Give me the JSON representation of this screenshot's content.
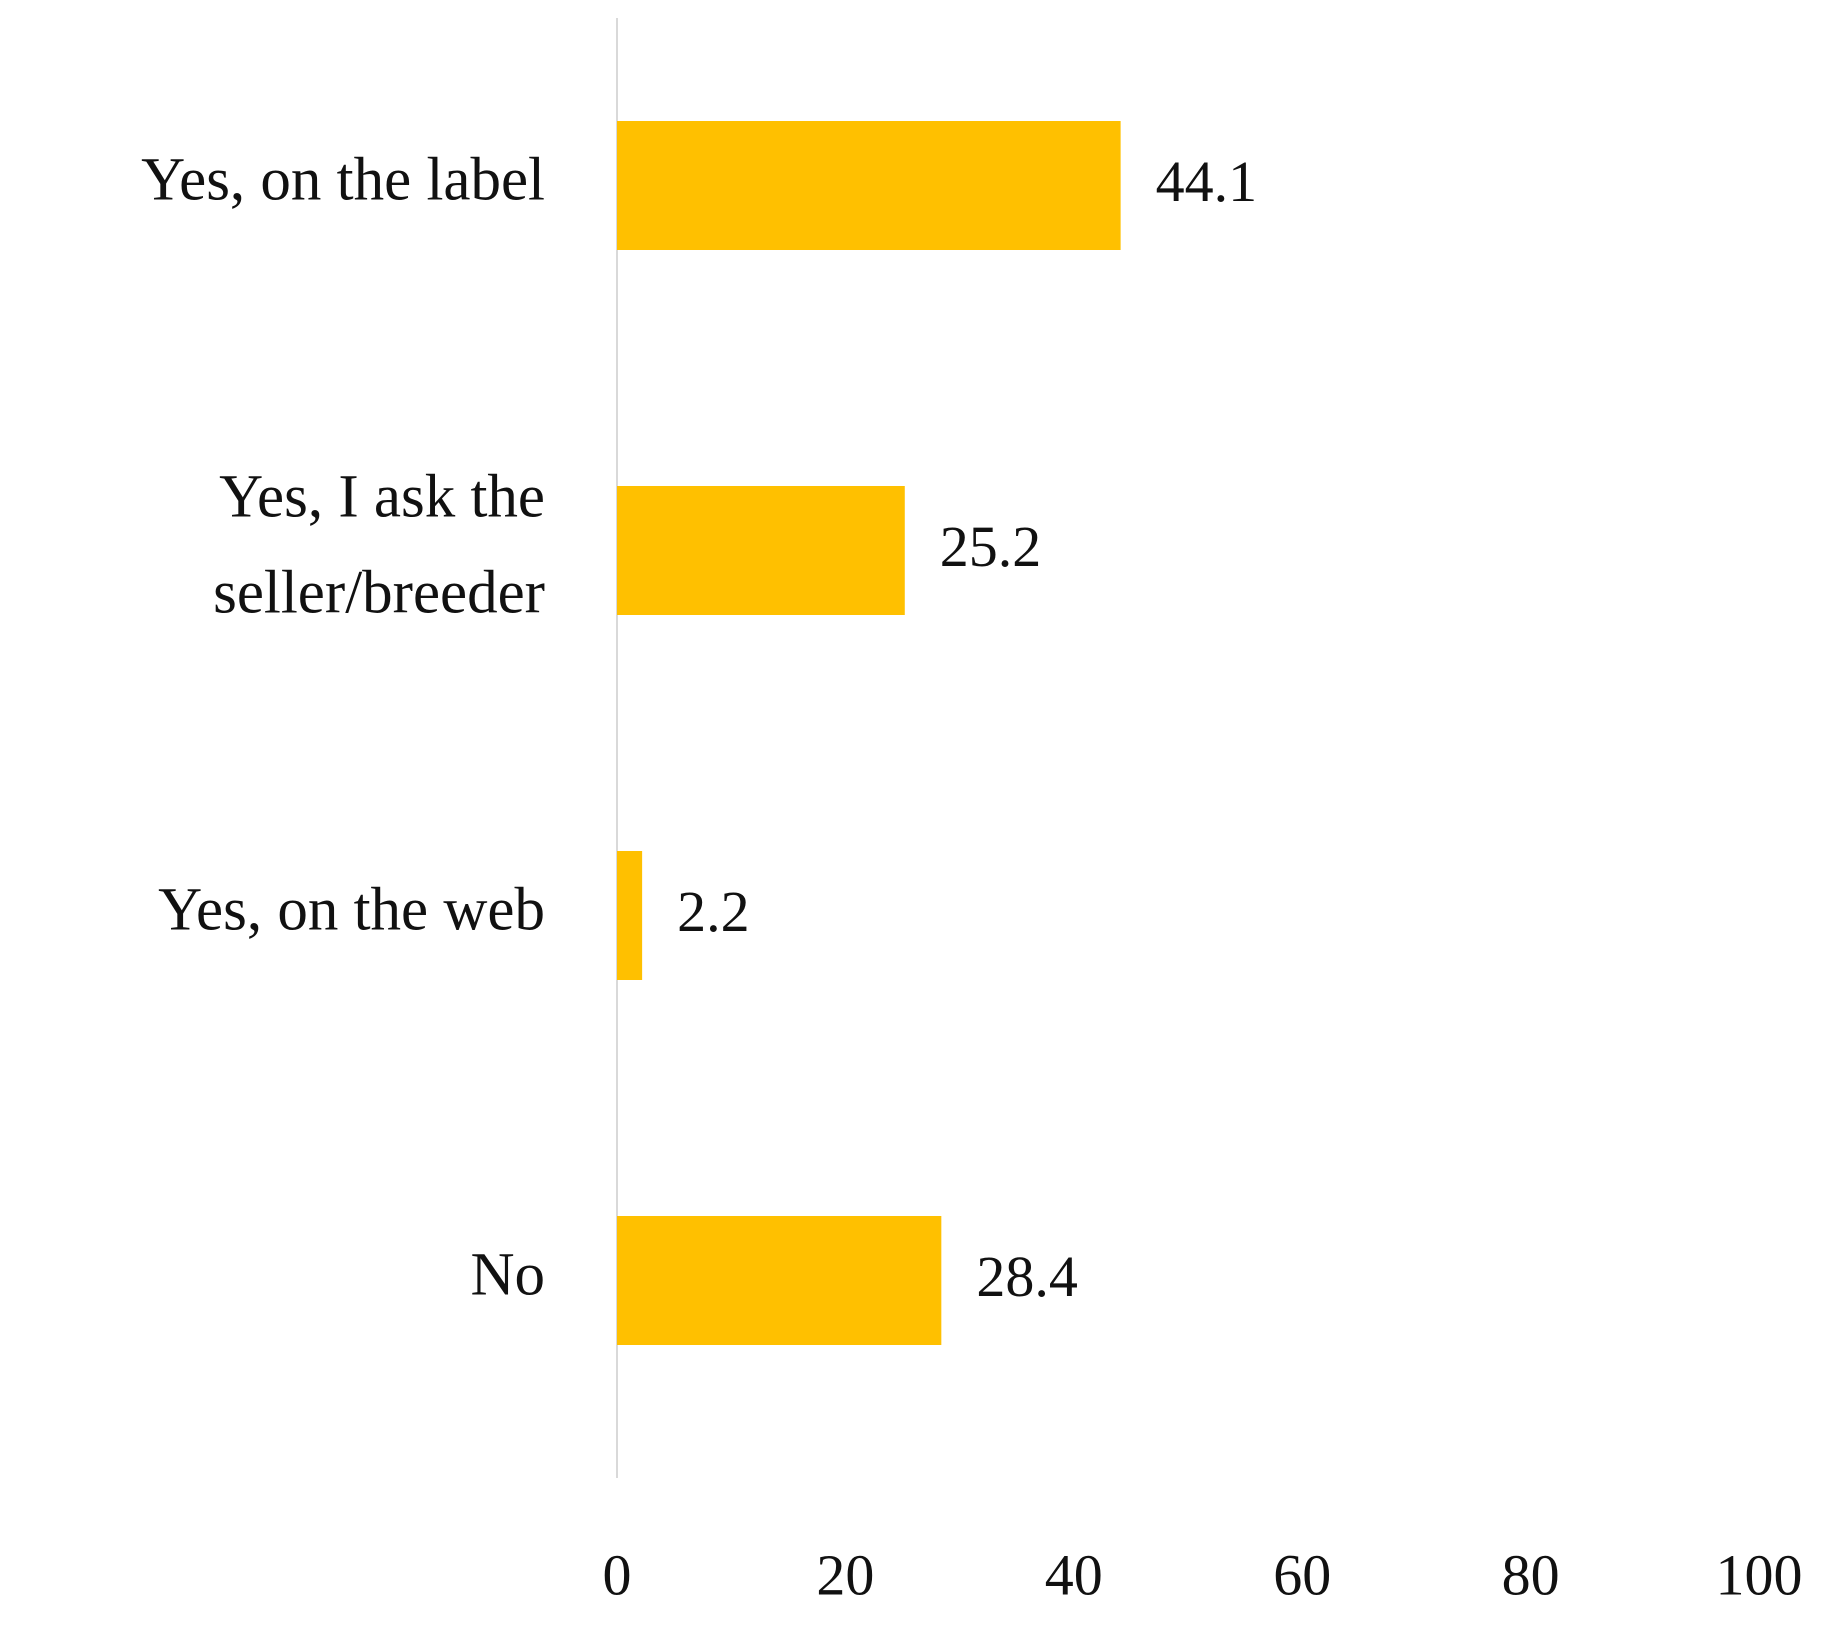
{
  "chart_data": {
    "type": "hbar",
    "categories": [
      "Yes, on the label",
      "Yes, I ask the seller/breeder",
      "Yes, on the web",
      "No"
    ],
    "values": [
      44.1,
      25.2,
      2.2,
      28.4
    ],
    "color": "#FFC000",
    "xlim": [
      0,
      100
    ],
    "xticks": [
      0,
      20,
      40,
      60,
      80,
      100
    ],
    "grid": false
  }
}
